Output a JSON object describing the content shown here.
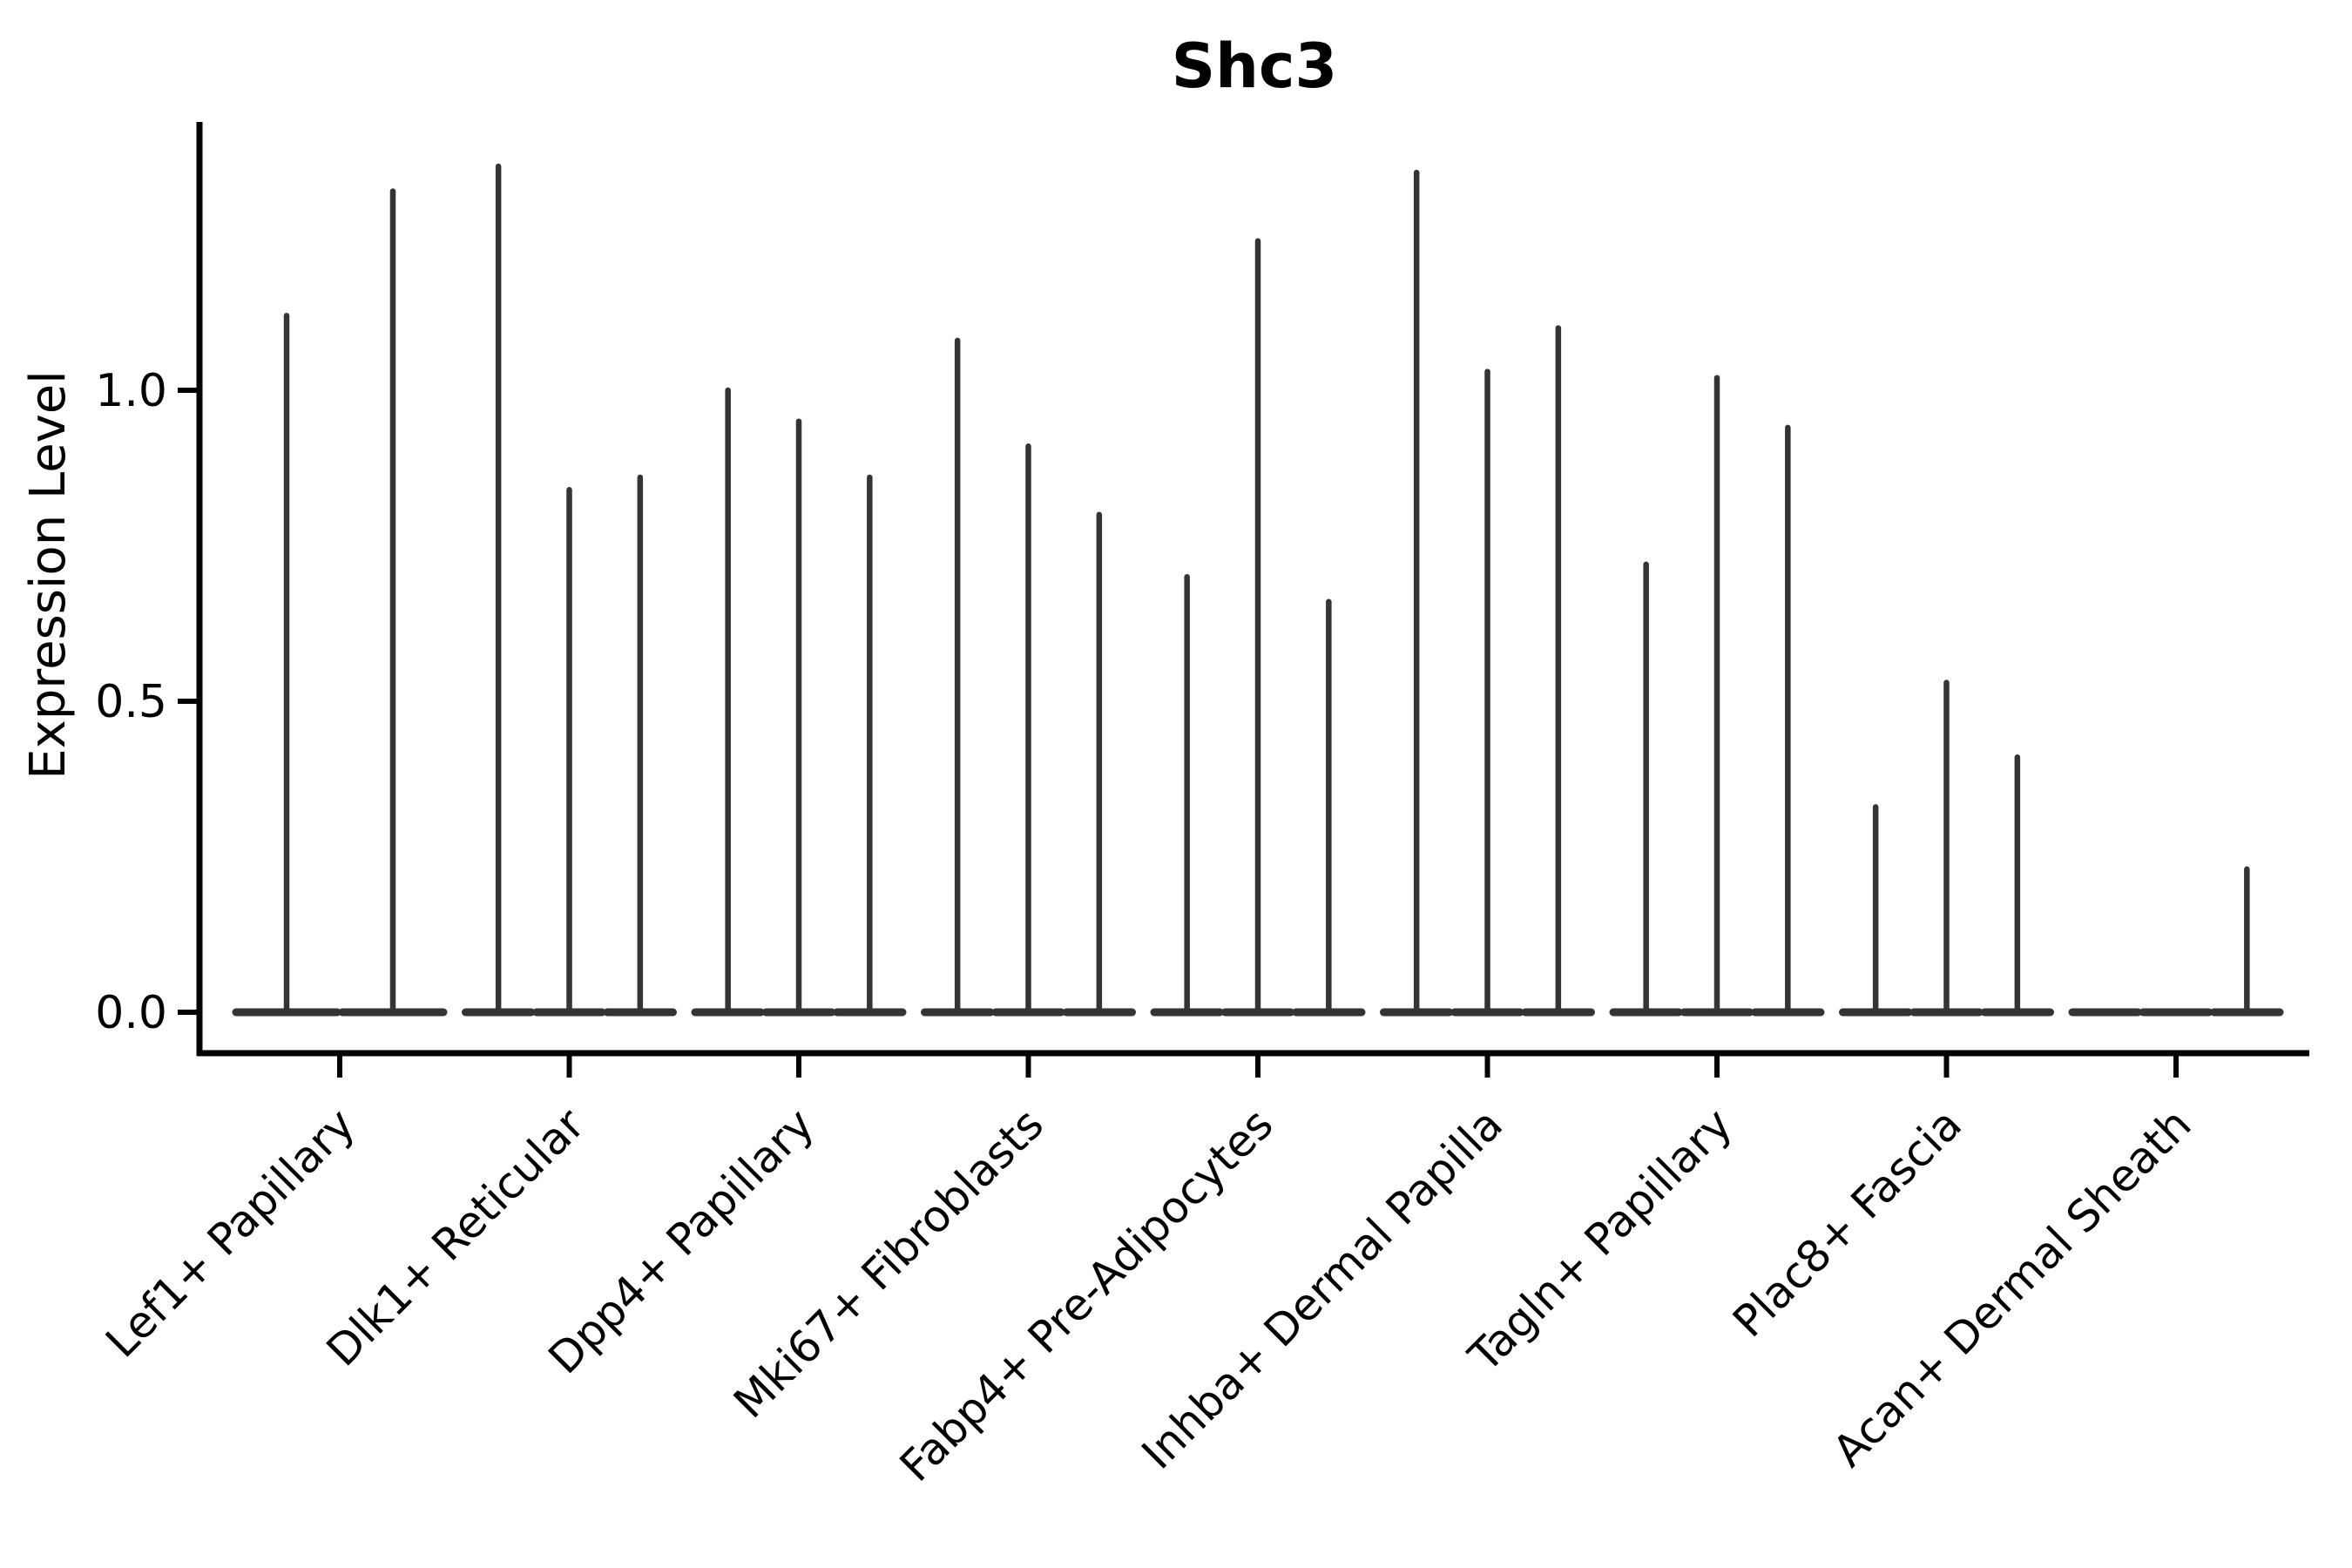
{
  "figure": {
    "background": "#ffffff",
    "axis_color": "#000000",
    "violin_color": "#343434",
    "text_color": "#000000"
  },
  "chart_data": {
    "type": "violin",
    "title": "Shc3",
    "xlabel": "",
    "ylabel": "Expression Level",
    "grid": false,
    "legend": "none",
    "ylim": [
      -0.07,
      1.43
    ],
    "yticks": [
      0.0,
      0.5,
      1.0
    ],
    "ytick_labels": [
      "0.0",
      "0.5",
      "1.0"
    ],
    "categories": [
      "Lef1+ Papillary",
      "Dlk1+ Reticular",
      "Dpp4+ Papillary",
      "Mki67+ Fibroblasts",
      "Fabp4+ Pre-Adipocytes",
      "Inhba+ Dermal Papilla",
      "Tagln+ Papillary",
      "Plac8+ Fascia",
      "Acan+ Dermal Sheath"
    ],
    "series": [
      {
        "name": "Lef1+ Papillary",
        "violin_max_values": [
          1.12,
          1.32
        ]
      },
      {
        "name": "Dlk1+ Reticular",
        "violin_max_values": [
          1.36,
          0.84,
          0.86
        ]
      },
      {
        "name": "Dpp4+ Papillary",
        "violin_max_values": [
          1.0,
          0.95,
          0.86
        ]
      },
      {
        "name": "Mki67+ Fibroblasts",
        "violin_max_values": [
          1.08,
          0.91,
          0.8
        ]
      },
      {
        "name": "Fabp4+ Pre-Adipocytes",
        "violin_max_values": [
          0.7,
          1.24,
          0.66
        ]
      },
      {
        "name": "Inhba+ Dermal Papilla",
        "violin_max_values": [
          1.35,
          1.03,
          1.1
        ]
      },
      {
        "name": "Tagln+ Papillary",
        "violin_max_values": [
          0.72,
          1.02,
          0.94
        ]
      },
      {
        "name": "Plac8+ Fascia",
        "violin_max_values": [
          0.33,
          0.53,
          0.41
        ]
      },
      {
        "name": "Acan+ Dermal Sheath",
        "violin_max_values": [
          0.0,
          0.0,
          0.23
        ]
      }
    ],
    "shape_note": "Each violin is an extremely narrow spike: density mass concentrated at 0 (wide flat base on the zero line) with a thin vertical line up to the max expression value."
  }
}
